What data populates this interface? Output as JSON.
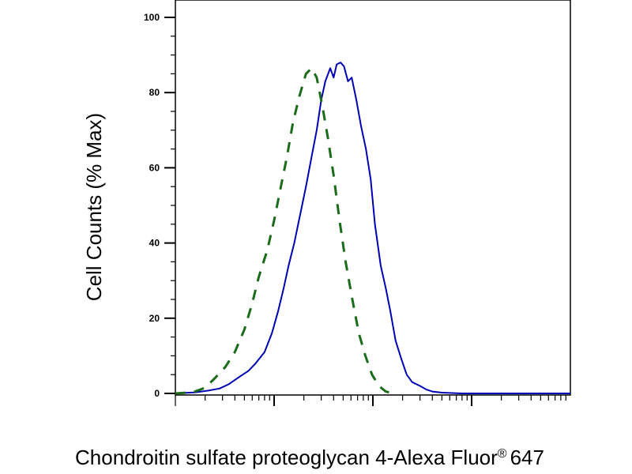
{
  "chart_data": {
    "type": "line",
    "title": "",
    "xlabel": "Chondroitin sulfate proteoglycan 4-Alexa Fluor",
    "xlabel_sup": "®",
    "xlabel_suffix": "647",
    "ylabel": "Cell Counts (% Max)",
    "ylim": [
      0,
      100
    ],
    "yticks": [
      0,
      20,
      40,
      60,
      80,
      100
    ],
    "x_scale": "log",
    "xlim": [
      10,
      100000
    ],
    "x_major_ticks": [
      100,
      1000,
      10000
    ],
    "x_tick_labels_shown": false,
    "grid": false,
    "legend": "none",
    "series": [
      {
        "color": "#0000b4",
        "dash": "solid",
        "points": [
          [
            10,
            0
          ],
          [
            16,
            0.3
          ],
          [
            22,
            0.8
          ],
          [
            28,
            1.3
          ],
          [
            35,
            2.5
          ],
          [
            45,
            4.5
          ],
          [
            55,
            6
          ],
          [
            65,
            8
          ],
          [
            80,
            11
          ],
          [
            95,
            16
          ],
          [
            110,
            22
          ],
          [
            125,
            28
          ],
          [
            140,
            34
          ],
          [
            160,
            40
          ],
          [
            185,
            48
          ],
          [
            210,
            55
          ],
          [
            240,
            63
          ],
          [
            270,
            70
          ],
          [
            300,
            78
          ],
          [
            330,
            83
          ],
          [
            370,
            86.5
          ],
          [
            400,
            84
          ],
          [
            430,
            87.5
          ],
          [
            470,
            88
          ],
          [
            510,
            87
          ],
          [
            560,
            83
          ],
          [
            610,
            84
          ],
          [
            680,
            78
          ],
          [
            760,
            71
          ],
          [
            850,
            65
          ],
          [
            950,
            57
          ],
          [
            1050,
            45
          ],
          [
            1200,
            34
          ],
          [
            1350,
            28
          ],
          [
            1500,
            22
          ],
          [
            1700,
            14
          ],
          [
            1950,
            9
          ],
          [
            2200,
            5
          ],
          [
            2500,
            3
          ],
          [
            3000,
            2
          ],
          [
            3500,
            1
          ],
          [
            4000,
            0.5
          ],
          [
            5000,
            0.2
          ],
          [
            8000,
            0
          ],
          [
            100000,
            0
          ]
        ]
      },
      {
        "color": "#1a6b1a",
        "dash": "dashed",
        "points": [
          [
            10,
            0
          ],
          [
            15,
            0.3
          ],
          [
            20,
            1.5
          ],
          [
            25,
            4
          ],
          [
            32,
            7
          ],
          [
            40,
            11
          ],
          [
            50,
            17
          ],
          [
            60,
            24
          ],
          [
            70,
            31
          ],
          [
            85,
            38
          ],
          [
            100,
            46
          ],
          [
            115,
            54
          ],
          [
            135,
            63
          ],
          [
            155,
            72
          ],
          [
            180,
            79
          ],
          [
            210,
            85
          ],
          [
            240,
            86.5
          ],
          [
            270,
            84
          ],
          [
            310,
            76
          ],
          [
            350,
            68
          ],
          [
            400,
            58
          ],
          [
            460,
            46
          ],
          [
            530,
            35
          ],
          [
            620,
            25
          ],
          [
            720,
            16
          ],
          [
            840,
            10
          ],
          [
            980,
            5
          ],
          [
            1150,
            2
          ],
          [
            1350,
            0.5
          ],
          [
            1600,
            0
          ]
        ]
      }
    ]
  }
}
